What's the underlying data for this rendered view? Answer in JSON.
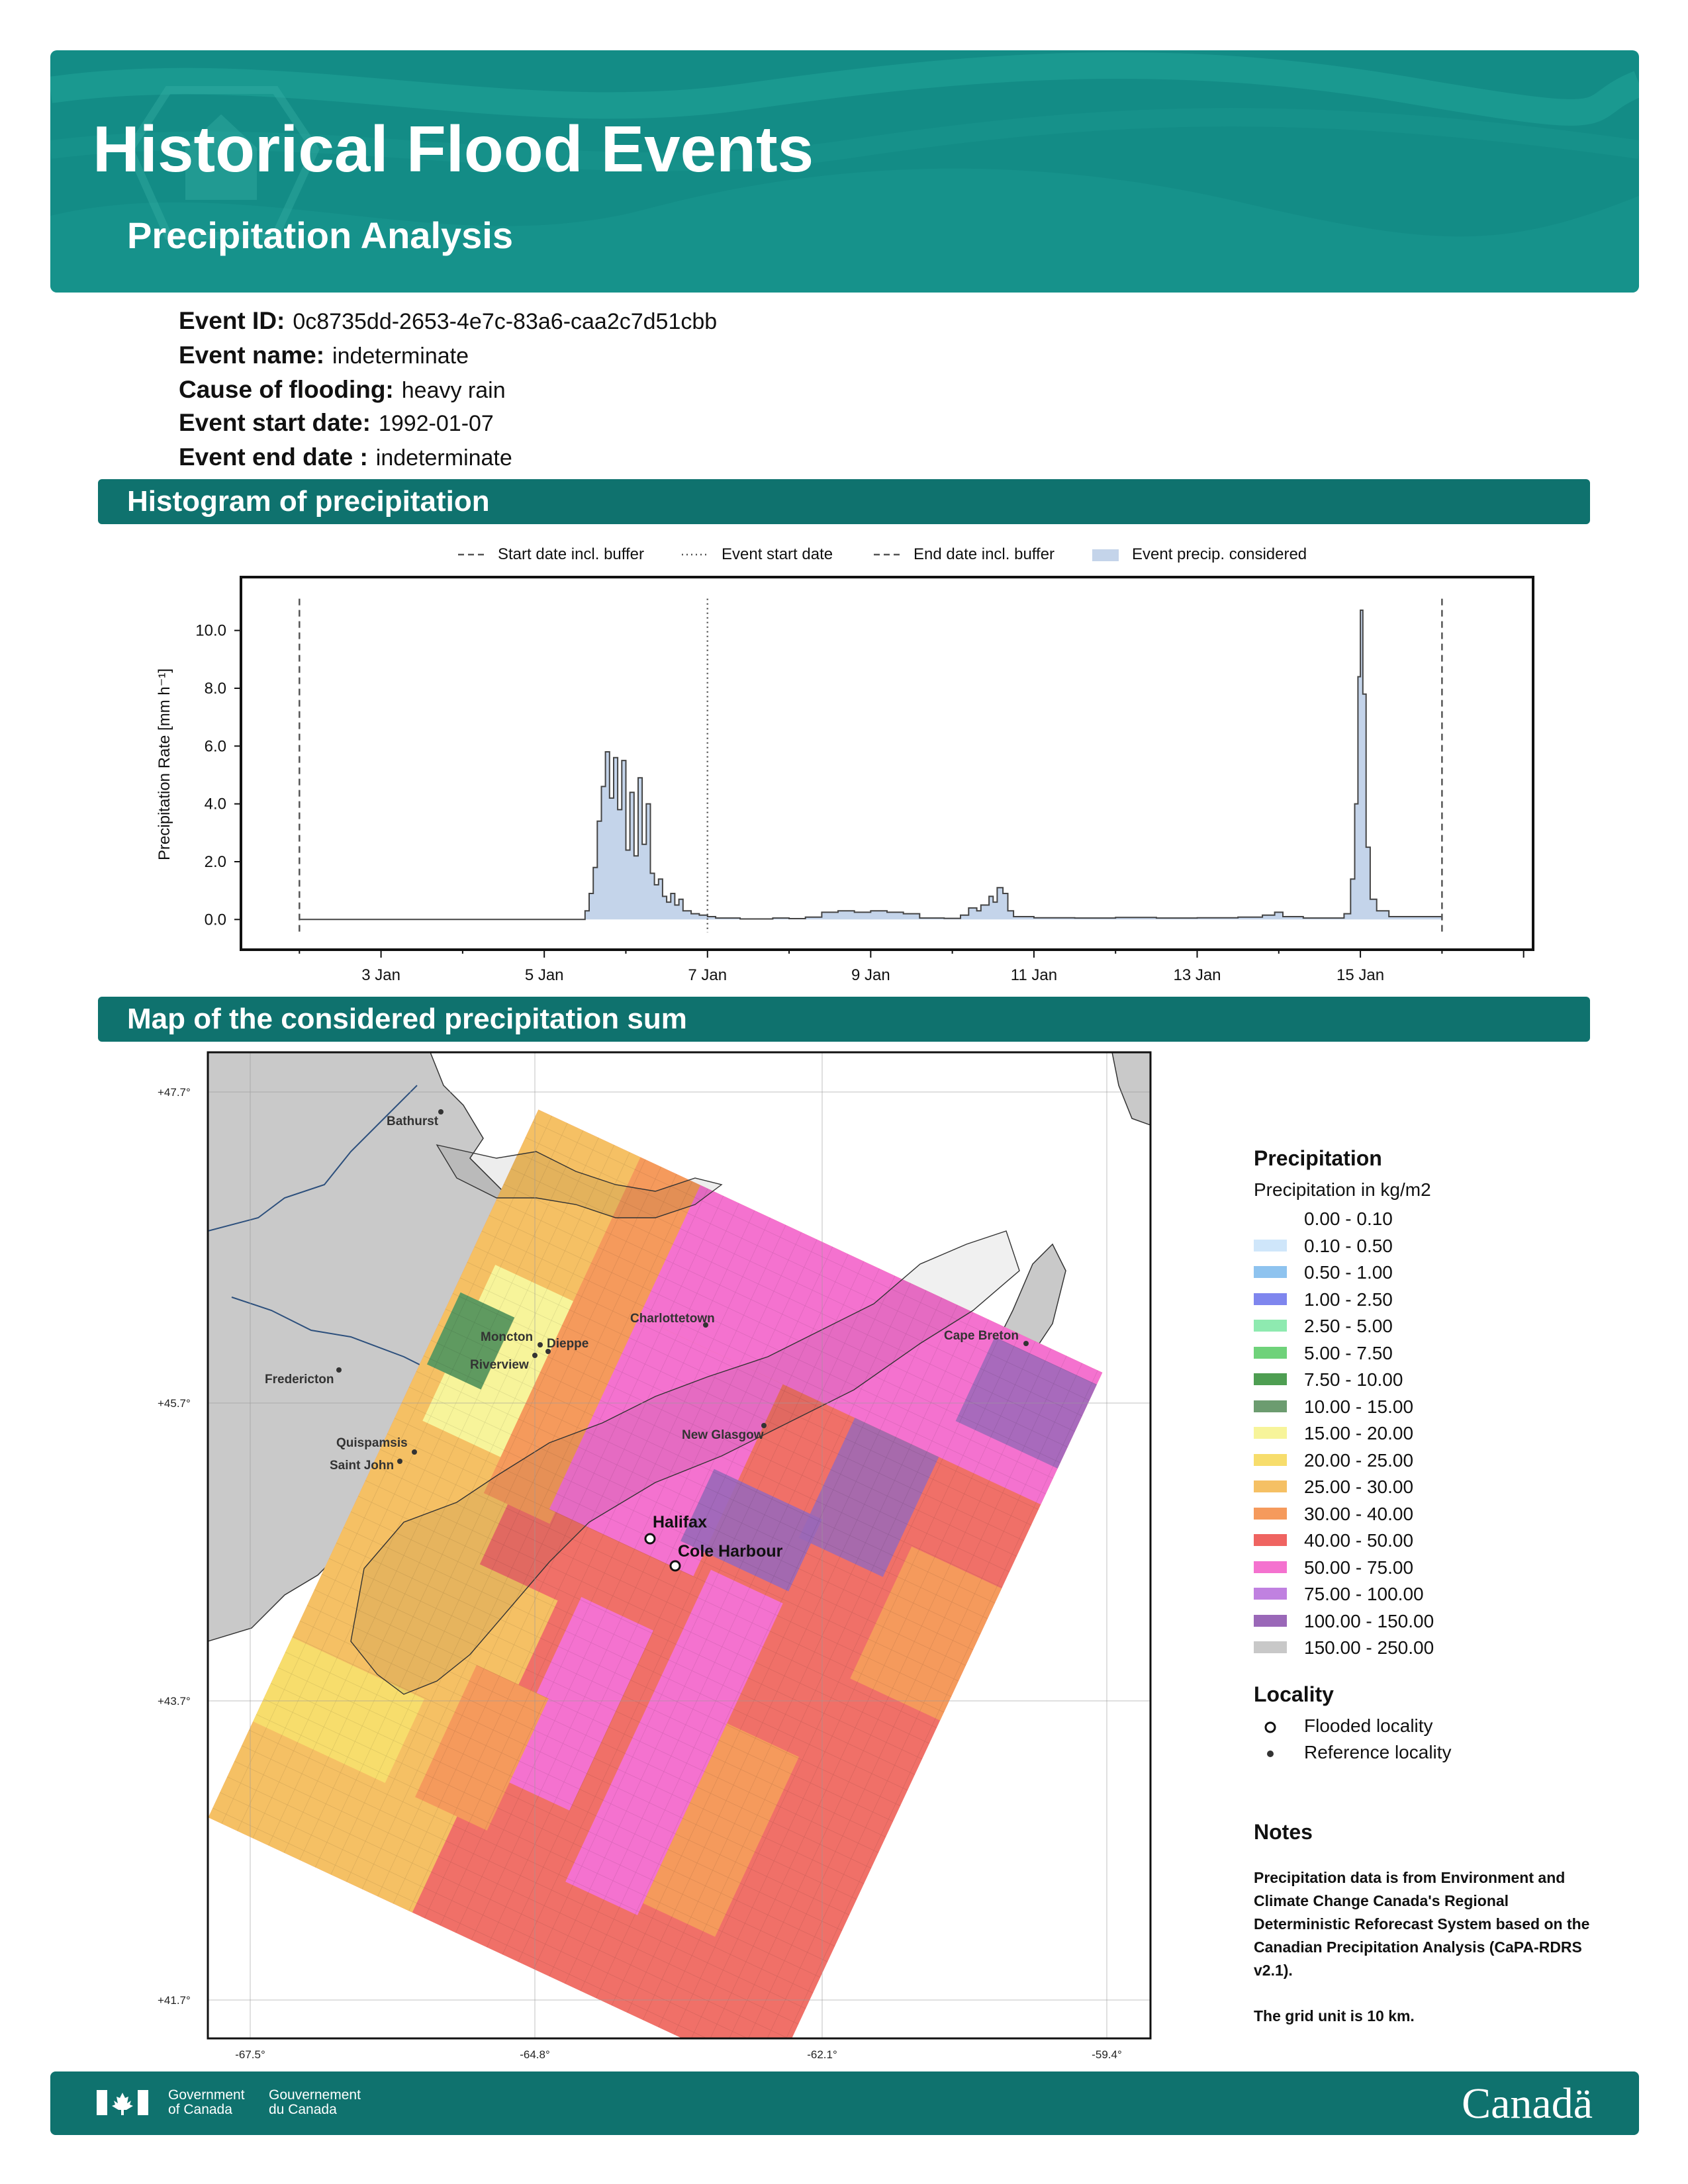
{
  "header": {
    "title": "Historical Flood Events",
    "subtitle": "Precipitation Analysis",
    "color": "#138c86"
  },
  "event_info": [
    {
      "label": "Event ID:",
      "value": "0c8735dd-2653-4e7c-83a6-caa2c7d51cbb"
    },
    {
      "label": "Event name:",
      "value": "indeterminate"
    },
    {
      "label": "Cause of flooding:",
      "value": "heavy rain"
    },
    {
      "label": "Event start date:",
      "value": "1992-01-07"
    },
    {
      "label": "Event end date :",
      "value": "indeterminate"
    }
  ],
  "sections": {
    "histogram": "Histogram of precipitation",
    "map": "Map of the considered precipitation sum"
  },
  "chart_data": {
    "type": "area",
    "ylabel": "Precipitation Rate [mm h⁻¹]",
    "ylim": [
      -1.0,
      11.8
    ],
    "yticks": [
      "0.0",
      "2.0",
      "4.0",
      "6.0",
      "8.0",
      "10.0"
    ],
    "xlim_days": [
      1.3,
      17.1
    ],
    "xticks": [
      {
        "day": 3,
        "label": "3 Jan"
      },
      {
        "day": 5,
        "label": "5 Jan"
      },
      {
        "day": 7,
        "label": "7 Jan"
      },
      {
        "day": 9,
        "label": "9 Jan"
      },
      {
        "day": 11,
        "label": "11 Jan"
      },
      {
        "day": 13,
        "label": "13 Jan"
      },
      {
        "day": 15,
        "label": "15 Jan"
      }
    ],
    "legend": [
      {
        "label": "Start date incl. buffer",
        "style": "dashed"
      },
      {
        "label": "Event start date",
        "style": "dotted"
      },
      {
        "label": "End date incl. buffer",
        "style": "dashed"
      },
      {
        "label": "Event precip. considered",
        "style": "fill"
      }
    ],
    "vlines": [
      {
        "day": 2.0,
        "style": "dashed"
      },
      {
        "day": 7.0,
        "style": "dotted"
      },
      {
        "day": 16.0,
        "style": "dashed"
      }
    ],
    "series": [
      {
        "points": [
          [
            2.0,
            0.0
          ],
          [
            5.45,
            0.0
          ],
          [
            5.5,
            0.3
          ],
          [
            5.55,
            0.9
          ],
          [
            5.6,
            1.8
          ],
          [
            5.65,
            3.4
          ],
          [
            5.7,
            4.6
          ],
          [
            5.75,
            5.8
          ],
          [
            5.8,
            4.2
          ],
          [
            5.85,
            5.6
          ],
          [
            5.9,
            3.8
          ],
          [
            5.95,
            5.5
          ],
          [
            6.0,
            2.4
          ],
          [
            6.05,
            4.4
          ],
          [
            6.1,
            2.2
          ],
          [
            6.15,
            4.9
          ],
          [
            6.2,
            2.6
          ],
          [
            6.25,
            4.0
          ],
          [
            6.3,
            1.6
          ],
          [
            6.35,
            1.2
          ],
          [
            6.4,
            1.4
          ],
          [
            6.45,
            0.8
          ],
          [
            6.5,
            0.6
          ],
          [
            6.55,
            0.9
          ],
          [
            6.6,
            0.5
          ],
          [
            6.65,
            0.7
          ],
          [
            6.7,
            0.3
          ],
          [
            6.8,
            0.2
          ],
          [
            6.9,
            0.15
          ],
          [
            7.0,
            0.1
          ],
          [
            7.1,
            0.05
          ],
          [
            7.4,
            0.02
          ],
          [
            7.8,
            0.05
          ],
          [
            8.0,
            0.03
          ],
          [
            8.2,
            0.08
          ],
          [
            8.4,
            0.25
          ],
          [
            8.6,
            0.3
          ],
          [
            8.8,
            0.25
          ],
          [
            9.0,
            0.3
          ],
          [
            9.2,
            0.25
          ],
          [
            9.4,
            0.2
          ],
          [
            9.6,
            0.05
          ],
          [
            9.9,
            0.04
          ],
          [
            10.1,
            0.15
          ],
          [
            10.2,
            0.4
          ],
          [
            10.3,
            0.3
          ],
          [
            10.35,
            0.5
          ],
          [
            10.45,
            0.8
          ],
          [
            10.5,
            0.6
          ],
          [
            10.55,
            1.1
          ],
          [
            10.62,
            0.9
          ],
          [
            10.68,
            0.3
          ],
          [
            10.75,
            0.1
          ],
          [
            11.0,
            0.06
          ],
          [
            11.5,
            0.05
          ],
          [
            12.0,
            0.07
          ],
          [
            12.5,
            0.05
          ],
          [
            13.0,
            0.06
          ],
          [
            13.5,
            0.08
          ],
          [
            13.8,
            0.15
          ],
          [
            13.95,
            0.25
          ],
          [
            14.05,
            0.1
          ],
          [
            14.3,
            0.05
          ],
          [
            14.6,
            0.05
          ],
          [
            14.8,
            0.2
          ],
          [
            14.88,
            1.4
          ],
          [
            14.93,
            4.0
          ],
          [
            14.97,
            8.4
          ],
          [
            15.0,
            10.7
          ],
          [
            15.03,
            7.8
          ],
          [
            15.07,
            2.5
          ],
          [
            15.12,
            0.7
          ],
          [
            15.2,
            0.3
          ],
          [
            15.35,
            0.1
          ],
          [
            16.0,
            0.0
          ]
        ]
      }
    ]
  },
  "map": {
    "lat_labels": [
      "+47.7°",
      "+45.7°",
      "+43.7°",
      "+41.7°"
    ],
    "lon_labels": [
      "-67.5°",
      "-64.8°",
      "-62.1°",
      "-59.4°"
    ],
    "reference_localities": [
      "Bathurst",
      "Charlottetown",
      "Moncton",
      "Dieppe",
      "Riverview",
      "Cape Breton",
      "Fredericton",
      "New Glasgow",
      "Quispamsis",
      "Saint John"
    ],
    "flooded_localities": [
      "Halifax",
      "Cole Harbour"
    ]
  },
  "legend_panel": {
    "title": "Precipitation",
    "subtitle": "Precipitation in kg/m2",
    "classes": [
      {
        "label": "0.00 - 0.10",
        "color": "#ffffff"
      },
      {
        "label": "0.10 - 0.50",
        "color": "#cfe6fa"
      },
      {
        "label": "0.50 - 1.00",
        "color": "#8ec3ef"
      },
      {
        "label": "1.00 - 2.50",
        "color": "#7f86ee"
      },
      {
        "label": "2.50 - 5.00",
        "color": "#8eeab0"
      },
      {
        "label": "5.00 - 7.50",
        "color": "#6fd27a"
      },
      {
        "label": "7.50 - 10.00",
        "color": "#4e9e52"
      },
      {
        "label": "10.00 - 15.00",
        "color": "#6c9c70"
      },
      {
        "label": "15.00 - 20.00",
        "color": "#f7f49a"
      },
      {
        "label": "20.00 - 25.00",
        "color": "#f7dd6c"
      },
      {
        "label": "25.00 - 30.00",
        "color": "#f5c064"
      },
      {
        "label": "30.00 - 40.00",
        "color": "#f59a5c"
      },
      {
        "label": "40.00 - 50.00",
        "color": "#ef6461"
      },
      {
        "label": "50.00 - 75.00",
        "color": "#f472cf"
      },
      {
        "label": "75.00 - 100.00",
        "color": "#c081e0"
      },
      {
        "label": "100.00 - 150.00",
        "color": "#9a68b8"
      },
      {
        "label": "150.00 - 250.00",
        "color": "#c8c8c8"
      }
    ],
    "locality_title": "Locality",
    "flooded_label": "Flooded locality",
    "reference_label": "Reference locality",
    "notes_title": "Notes",
    "notes": [
      "Precipitation data is from Environment and Climate Change Canada's Regional Deterministic Reforecast System based on the Canadian Precipitation Analysis (CaPA-RDRS v2.1).",
      "The grid unit is 10 km."
    ]
  },
  "footer": {
    "gov_en_1": "Government",
    "gov_en_2": "of Canada",
    "gov_fr_1": "Gouvernement",
    "gov_fr_2": "du Canada",
    "wordmark": "Canadä"
  }
}
